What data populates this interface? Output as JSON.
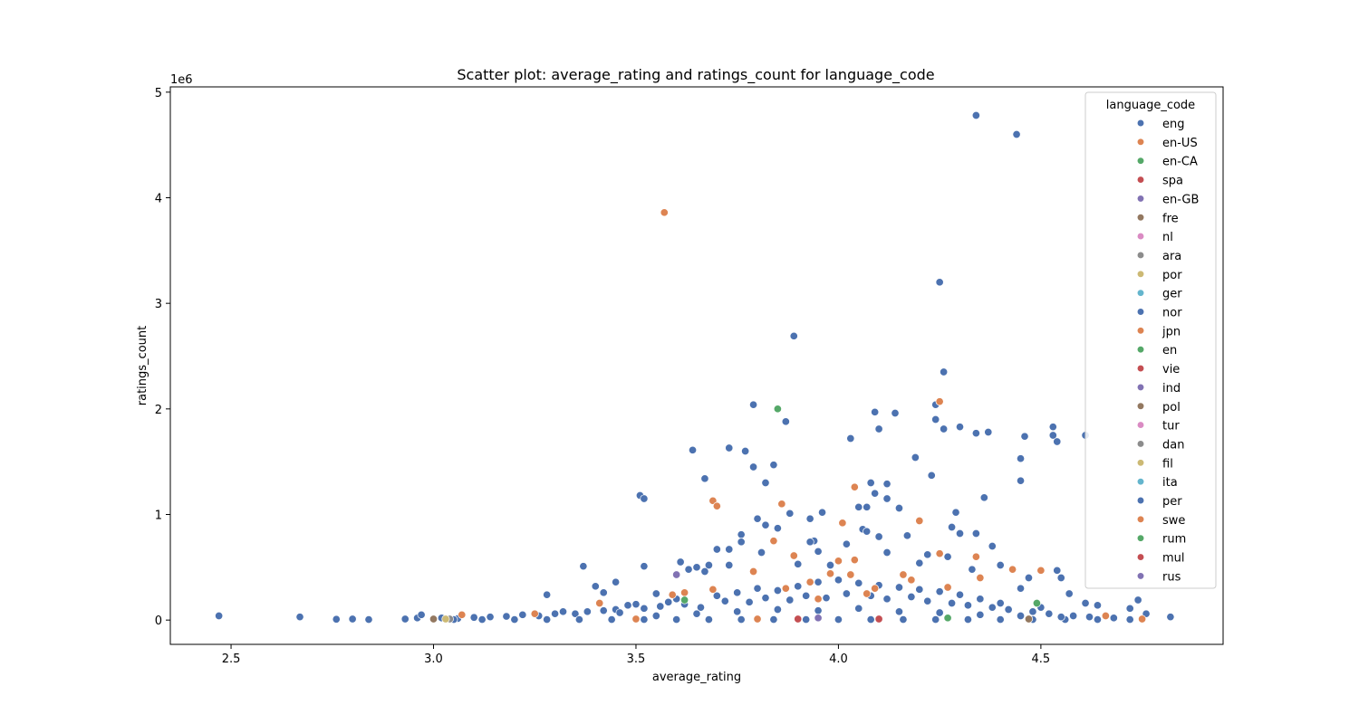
{
  "chart_data": {
    "type": "scatter",
    "title": "Scatter plot: average_rating and ratings_count for language_code",
    "xlabel": "average_rating",
    "ylabel": "ratings_count",
    "y_offset_label": "1e6",
    "xlim": [
      2.35,
      4.95
    ],
    "ylim": [
      -230000,
      5050000
    ],
    "x_ticks": [
      {
        "value": 2.5,
        "label": "2.5"
      },
      {
        "value": 3.0,
        "label": "3.0"
      },
      {
        "value": 3.5,
        "label": "3.5"
      },
      {
        "value": 4.0,
        "label": "4.0"
      },
      {
        "value": 4.5,
        "label": "4.5"
      }
    ],
    "y_ticks": [
      {
        "value": 0,
        "label": "0"
      },
      {
        "value": 1000000,
        "label": "1"
      },
      {
        "value": 2000000,
        "label": "2"
      },
      {
        "value": 3000000,
        "label": "3"
      },
      {
        "value": 4000000,
        "label": "4"
      },
      {
        "value": 5000000,
        "label": "5"
      }
    ],
    "grid": false,
    "legend": {
      "title": "language_code",
      "placement": "top-right",
      "entries": [
        {
          "name": "eng",
          "color": "#4c72b0"
        },
        {
          "name": "en-US",
          "color": "#dd8452"
        },
        {
          "name": "en-CA",
          "color": "#55a868"
        },
        {
          "name": "spa",
          "color": "#c44e52"
        },
        {
          "name": "en-GB",
          "color": "#8172b3"
        },
        {
          "name": "fre",
          "color": "#937860"
        },
        {
          "name": "nl",
          "color": "#da8bc3"
        },
        {
          "name": "ara",
          "color": "#8c8c8c"
        },
        {
          "name": "por",
          "color": "#ccb974"
        },
        {
          "name": "ger",
          "color": "#64b5cd"
        },
        {
          "name": "nor",
          "color": "#4c72b0"
        },
        {
          "name": "jpn",
          "color": "#dd8452"
        },
        {
          "name": "en",
          "color": "#55a868"
        },
        {
          "name": "vie",
          "color": "#c44e52"
        },
        {
          "name": "ind",
          "color": "#8172b3"
        },
        {
          "name": "pol",
          "color": "#937860"
        },
        {
          "name": "tur",
          "color": "#da8bc3"
        },
        {
          "name": "dan",
          "color": "#8c8c8c"
        },
        {
          "name": "fil",
          "color": "#ccb974"
        },
        {
          "name": "ita",
          "color": "#64b5cd"
        },
        {
          "name": "per",
          "color": "#4c72b0"
        },
        {
          "name": "swe",
          "color": "#dd8452"
        },
        {
          "name": "rum",
          "color": "#55a868"
        },
        {
          "name": "mul",
          "color": "#c44e52"
        },
        {
          "name": "rus",
          "color": "#8172b3"
        }
      ]
    },
    "series": [
      {
        "name": "eng",
        "color": "#4c72b0",
        "points": [
          [
            2.47,
            40000
          ],
          [
            2.67,
            30000
          ],
          [
            2.76,
            8000
          ],
          [
            2.8,
            10000
          ],
          [
            2.84,
            5000
          ],
          [
            2.93,
            10000
          ],
          [
            2.96,
            20000
          ],
          [
            2.97,
            50000
          ],
          [
            4.34,
            4780000
          ],
          [
            4.44,
            4600000
          ],
          [
            4.25,
            3200000
          ],
          [
            3.89,
            2690000
          ],
          [
            4.26,
            2350000
          ],
          [
            3.79,
            2040000
          ],
          [
            4.24,
            2040000
          ],
          [
            4.09,
            1970000
          ],
          [
            4.14,
            1960000
          ],
          [
            4.24,
            1900000
          ],
          [
            3.87,
            1880000
          ],
          [
            4.3,
            1830000
          ],
          [
            4.53,
            1830000
          ],
          [
            4.1,
            1810000
          ],
          [
            4.26,
            1810000
          ],
          [
            4.37,
            1780000
          ],
          [
            4.34,
            1770000
          ],
          [
            4.53,
            1750000
          ],
          [
            4.61,
            1750000
          ],
          [
            4.46,
            1740000
          ],
          [
            4.03,
            1720000
          ],
          [
            4.54,
            1690000
          ],
          [
            3.73,
            1630000
          ],
          [
            3.64,
            1610000
          ],
          [
            3.77,
            1600000
          ],
          [
            4.19,
            1540000
          ],
          [
            4.45,
            1530000
          ],
          [
            3.84,
            1470000
          ],
          [
            3.79,
            1450000
          ],
          [
            4.23,
            1370000
          ],
          [
            3.67,
            1340000
          ],
          [
            4.45,
            1320000
          ],
          [
            3.82,
            1300000
          ],
          [
            4.08,
            1300000
          ],
          [
            4.12,
            1290000
          ],
          [
            4.09,
            1200000
          ],
          [
            3.51,
            1180000
          ],
          [
            3.52,
            1150000
          ],
          [
            4.12,
            1150000
          ],
          [
            4.36,
            1160000
          ],
          [
            4.05,
            1070000
          ],
          [
            4.07,
            1070000
          ],
          [
            4.15,
            1060000
          ],
          [
            3.96,
            1020000
          ],
          [
            4.29,
            1020000
          ],
          [
            3.88,
            1010000
          ],
          [
            3.8,
            960000
          ],
          [
            3.93,
            960000
          ],
          [
            4.28,
            880000
          ],
          [
            4.06,
            860000
          ],
          [
            3.82,
            900000
          ],
          [
            3.85,
            870000
          ],
          [
            4.07,
            840000
          ],
          [
            3.76,
            810000
          ],
          [
            4.3,
            820000
          ],
          [
            4.34,
            820000
          ],
          [
            4.1,
            790000
          ],
          [
            4.17,
            800000
          ],
          [
            3.76,
            740000
          ],
          [
            3.94,
            750000
          ],
          [
            3.93,
            740000
          ],
          [
            4.02,
            720000
          ],
          [
            4.38,
            700000
          ],
          [
            3.73,
            670000
          ],
          [
            3.7,
            670000
          ],
          [
            4.12,
            640000
          ],
          [
            3.81,
            640000
          ],
          [
            3.95,
            650000
          ],
          [
            4.22,
            620000
          ],
          [
            4.27,
            600000
          ],
          [
            3.61,
            550000
          ],
          [
            3.65,
            500000
          ],
          [
            3.52,
            510000
          ],
          [
            3.37,
            510000
          ],
          [
            3.68,
            520000
          ],
          [
            3.73,
            520000
          ],
          [
            3.9,
            530000
          ],
          [
            3.98,
            520000
          ],
          [
            4.2,
            540000
          ],
          [
            4.4,
            520000
          ],
          [
            4.45,
            300000
          ],
          [
            4.55,
            400000
          ],
          [
            4.57,
            250000
          ],
          [
            3.4,
            320000
          ],
          [
            3.42,
            260000
          ],
          [
            3.45,
            360000
          ],
          [
            3.28,
            240000
          ],
          [
            3.55,
            250000
          ],
          [
            3.63,
            480000
          ],
          [
            3.67,
            460000
          ],
          [
            4.33,
            480000
          ],
          [
            4.54,
            470000
          ],
          [
            4.47,
            400000
          ],
          [
            4.61,
            160000
          ],
          [
            4.64,
            140000
          ],
          [
            4.74,
            190000
          ],
          [
            4.72,
            110000
          ],
          [
            4.76,
            60000
          ],
          [
            4.82,
            30000
          ],
          [
            3.32,
            80000
          ],
          [
            3.35,
            60000
          ],
          [
            3.45,
            100000
          ],
          [
            3.48,
            140000
          ],
          [
            3.5,
            150000
          ],
          [
            3.58,
            170000
          ],
          [
            3.6,
            200000
          ],
          [
            3.7,
            230000
          ],
          [
            3.75,
            260000
          ],
          [
            3.8,
            300000
          ],
          [
            3.85,
            280000
          ],
          [
            3.9,
            320000
          ],
          [
            3.95,
            360000
          ],
          [
            4.0,
            380000
          ],
          [
            4.05,
            350000
          ],
          [
            4.1,
            330000
          ],
          [
            4.15,
            310000
          ],
          [
            4.2,
            290000
          ],
          [
            4.25,
            270000
          ],
          [
            4.3,
            240000
          ],
          [
            4.35,
            200000
          ],
          [
            4.4,
            160000
          ],
          [
            4.5,
            120000
          ],
          [
            3.02,
            20000
          ],
          [
            3.06,
            15000
          ],
          [
            3.1,
            25000
          ],
          [
            3.14,
            30000
          ],
          [
            3.18,
            35000
          ],
          [
            3.22,
            50000
          ],
          [
            3.26,
            40000
          ],
          [
            3.3,
            60000
          ],
          [
            3.38,
            80000
          ],
          [
            3.42,
            90000
          ],
          [
            3.46,
            70000
          ],
          [
            3.52,
            110000
          ],
          [
            3.56,
            130000
          ],
          [
            3.62,
            150000
          ],
          [
            3.66,
            120000
          ],
          [
            3.72,
            180000
          ],
          [
            3.78,
            170000
          ],
          [
            3.82,
            210000
          ],
          [
            3.88,
            190000
          ],
          [
            3.92,
            230000
          ],
          [
            3.97,
            210000
          ],
          [
            4.02,
            250000
          ],
          [
            4.08,
            230000
          ],
          [
            4.12,
            200000
          ],
          [
            4.18,
            220000
          ],
          [
            4.22,
            180000
          ],
          [
            4.28,
            160000
          ],
          [
            4.32,
            140000
          ],
          [
            4.38,
            120000
          ],
          [
            4.42,
            100000
          ],
          [
            4.48,
            80000
          ],
          [
            4.52,
            60000
          ],
          [
            4.58,
            40000
          ],
          [
            4.62,
            30000
          ],
          [
            4.68,
            20000
          ],
          [
            3.05,
            5000
          ],
          [
            3.12,
            5000
          ],
          [
            3.2,
            5000
          ],
          [
            3.28,
            5000
          ],
          [
            3.36,
            5000
          ],
          [
            3.44,
            5000
          ],
          [
            3.52,
            5000
          ],
          [
            3.6,
            5000
          ],
          [
            3.68,
            5000
          ],
          [
            3.76,
            5000
          ],
          [
            3.84,
            5000
          ],
          [
            3.92,
            5000
          ],
          [
            4.0,
            5000
          ],
          [
            4.08,
            5000
          ],
          [
            4.16,
            5000
          ],
          [
            4.24,
            5000
          ],
          [
            4.32,
            5000
          ],
          [
            4.4,
            5000
          ],
          [
            4.48,
            5000
          ],
          [
            4.56,
            5000
          ],
          [
            4.64,
            5000
          ],
          [
            4.72,
            5000
          ],
          [
            3.55,
            40000
          ],
          [
            3.65,
            60000
          ],
          [
            3.75,
            80000
          ],
          [
            3.85,
            100000
          ],
          [
            3.95,
            90000
          ],
          [
            4.05,
            110000
          ],
          [
            4.15,
            80000
          ],
          [
            4.25,
            70000
          ],
          [
            4.35,
            50000
          ],
          [
            4.45,
            40000
          ],
          [
            4.55,
            30000
          ]
        ]
      },
      {
        "name": "en-US",
        "color": "#dd8452",
        "points": [
          [
            3.57,
            3860000
          ],
          [
            4.25,
            2070000
          ],
          [
            3.69,
            1130000
          ],
          [
            3.7,
            1080000
          ],
          [
            3.86,
            1100000
          ],
          [
            4.04,
            1260000
          ],
          [
            4.2,
            940000
          ],
          [
            4.01,
            920000
          ],
          [
            3.84,
            750000
          ],
          [
            4.25,
            630000
          ],
          [
            4.34,
            600000
          ],
          [
            3.89,
            610000
          ],
          [
            4.0,
            560000
          ],
          [
            4.04,
            570000
          ],
          [
            4.43,
            480000
          ],
          [
            4.5,
            470000
          ],
          [
            3.79,
            460000
          ],
          [
            4.03,
            430000
          ],
          [
            4.35,
            400000
          ],
          [
            3.62,
            260000
          ],
          [
            3.59,
            240000
          ],
          [
            3.69,
            290000
          ],
          [
            3.87,
            300000
          ],
          [
            4.16,
            430000
          ],
          [
            4.27,
            310000
          ],
          [
            3.98,
            440000
          ],
          [
            4.09,
            300000
          ],
          [
            3.95,
            200000
          ],
          [
            4.07,
            250000
          ],
          [
            3.41,
            160000
          ],
          [
            3.07,
            50000
          ],
          [
            3.25,
            60000
          ],
          [
            3.5,
            10000
          ],
          [
            3.8,
            10000
          ],
          [
            4.47,
            10000
          ],
          [
            4.75,
            10000
          ],
          [
            4.66,
            40000
          ],
          [
            3.93,
            360000
          ],
          [
            4.18,
            380000
          ]
        ]
      },
      {
        "name": "en-CA",
        "color": "#55a868",
        "points": [
          [
            3.85,
            2000000
          ],
          [
            3.62,
            190000
          ],
          [
            4.49,
            160000
          ],
          [
            4.27,
            20000
          ]
        ]
      },
      {
        "name": "spa",
        "color": "#c44e52",
        "points": [
          [
            3.9,
            10000
          ],
          [
            4.1,
            10000
          ]
        ]
      },
      {
        "name": "en-GB",
        "color": "#8172b3",
        "points": [
          [
            3.6,
            430000
          ],
          [
            3.95,
            20000
          ]
        ]
      },
      {
        "name": "fre",
        "color": "#937860",
        "points": [
          [
            3.0,
            10000
          ],
          [
            4.47,
            10000
          ]
        ]
      },
      {
        "name": "ara",
        "color": "#8c8c8c",
        "points": [
          [
            3.04,
            10000
          ]
        ]
      },
      {
        "name": "por",
        "color": "#ccb974",
        "points": [
          [
            3.03,
            10000
          ]
        ]
      }
    ]
  }
}
